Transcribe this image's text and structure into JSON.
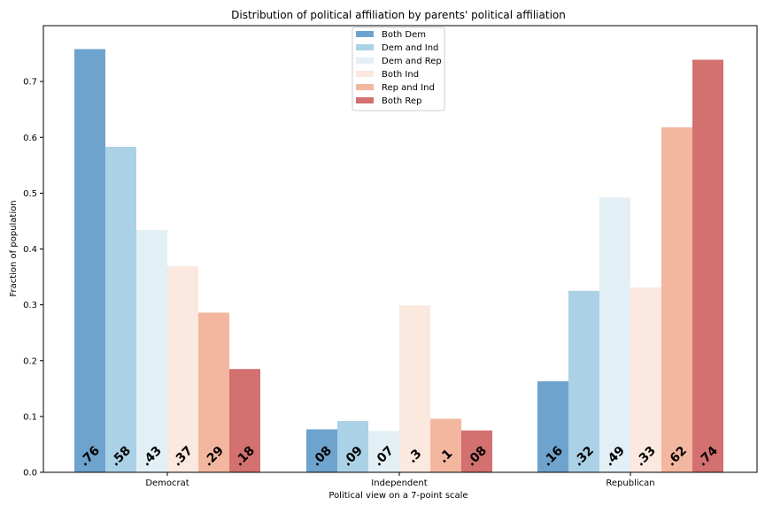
{
  "chart_data": {
    "type": "bar",
    "title": "Distribution of political affiliation by parents' political affiliation",
    "xlabel": "Political view on a 7-point scale",
    "ylabel": "Fraction of population",
    "categories": [
      "Democrat",
      "Independent",
      "Republican"
    ],
    "ylim": [
      0,
      0.8
    ],
    "yticks": [
      "0.0",
      "0.1",
      "0.2",
      "0.3",
      "0.4",
      "0.5",
      "0.6",
      "0.7"
    ],
    "legend_position": "top-center",
    "grid": false,
    "series": [
      {
        "name": "Both Dem",
        "color": "#6ea3cd",
        "values": [
          0.758,
          0.077,
          0.163
        ],
        "labels": [
          ".76",
          ".08",
          ".16"
        ]
      },
      {
        "name": "Dem and Ind",
        "color": "#abd1e6",
        "values": [
          0.583,
          0.092,
          0.325
        ],
        "labels": [
          ".58",
          ".09",
          ".32"
        ]
      },
      {
        "name": "Dem and Rep",
        "color": "#e2eff5",
        "values": [
          0.434,
          0.074,
          0.492
        ],
        "labels": [
          ".43",
          ".07",
          ".49"
        ]
      },
      {
        "name": "Both Ind",
        "color": "#fbe8df",
        "values": [
          0.369,
          0.299,
          0.331
        ],
        "labels": [
          ".37",
          ".3",
          ".33"
        ]
      },
      {
        "name": "Rep and Ind",
        "color": "#f3b7a0",
        "values": [
          0.286,
          0.096,
          0.618
        ],
        "labels": [
          ".29",
          ".1",
          ".62"
        ]
      },
      {
        "name": "Both Rep",
        "color": "#d37070",
        "values": [
          0.185,
          0.075,
          0.739
        ],
        "labels": [
          ".18",
          ".08",
          ".74"
        ]
      }
    ]
  }
}
